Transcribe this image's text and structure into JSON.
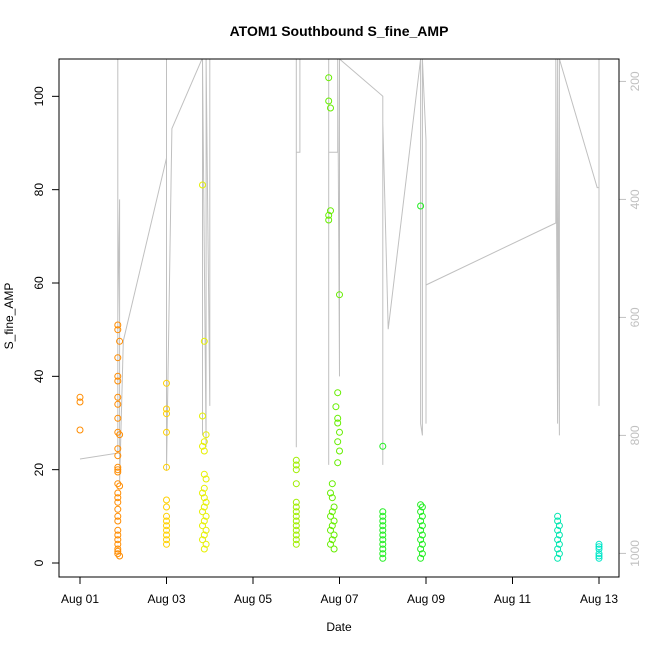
{
  "chart_data": {
    "type": "scatter",
    "title": "ATOM1 Southbound S_fine_AMP",
    "xlabel": "Date",
    "ylabel": "S_fine_AMP",
    "x_ticks": [
      "Aug 01",
      "Aug 03",
      "Aug 05",
      "Aug 07",
      "Aug 09",
      "Aug 11",
      "Aug 13"
    ],
    "y_ticks": [
      0,
      20,
      40,
      60,
      80,
      100
    ],
    "ylim": [
      -3,
      108
    ],
    "secondary_axis": {
      "side": "right",
      "ticks": [
        200,
        400,
        600,
        800,
        1000
      ],
      "ylim_reversed": [
        1040,
        162
      ],
      "color": "#c0c0c0"
    },
    "grid": false,
    "legend": "none",
    "series": [
      {
        "color": "#ff8c00",
        "points": [
          [
            "2023-08-01T00:00",
            35.5
          ],
          [
            "2023-08-01T00:00",
            34.5
          ],
          [
            "2023-08-01T00:00",
            28.5
          ],
          [
            "2023-08-01T21:00",
            51
          ],
          [
            "2023-08-01T21:00",
            50
          ],
          [
            "2023-08-01T22:00",
            47.5
          ],
          [
            "2023-08-01T21:00",
            44
          ],
          [
            "2023-08-01T21:00",
            40
          ],
          [
            "2023-08-01T21:00",
            39
          ],
          [
            "2023-08-01T21:00",
            35.5
          ],
          [
            "2023-08-01T21:00",
            34
          ],
          [
            "2023-08-01T21:00",
            31
          ],
          [
            "2023-08-01T21:00",
            28
          ],
          [
            "2023-08-01T22:00",
            27.5
          ],
          [
            "2023-08-01T21:00",
            24.5
          ],
          [
            "2023-08-01T21:00",
            23
          ],
          [
            "2023-08-01T21:00",
            20.5
          ],
          [
            "2023-08-01T21:00",
            20
          ],
          [
            "2023-08-01T21:00",
            19.5
          ],
          [
            "2023-08-01T21:00",
            17
          ],
          [
            "2023-08-01T22:00",
            16.5
          ],
          [
            "2023-08-01T21:00",
            15
          ],
          [
            "2023-08-01T21:00",
            14
          ],
          [
            "2023-08-01T21:00",
            13
          ],
          [
            "2023-08-01T21:00",
            11.5
          ],
          [
            "2023-08-01T21:00",
            10
          ],
          [
            "2023-08-01T21:00",
            9
          ],
          [
            "2023-08-01T21:00",
            7
          ],
          [
            "2023-08-01T21:00",
            6
          ],
          [
            "2023-08-01T21:00",
            5
          ],
          [
            "2023-08-01T21:00",
            4
          ],
          [
            "2023-08-01T21:00",
            3
          ],
          [
            "2023-08-01T21:00",
            2.5
          ],
          [
            "2023-08-01T21:00",
            2
          ],
          [
            "2023-08-01T22:00",
            1.5
          ]
        ]
      },
      {
        "color": "#ffd000",
        "points": [
          [
            "2023-08-03T00:00",
            38.5
          ],
          [
            "2023-08-03T00:00",
            33
          ],
          [
            "2023-08-03T00:00",
            32
          ],
          [
            "2023-08-03T00:00",
            28
          ],
          [
            "2023-08-03T00:00",
            20.5
          ],
          [
            "2023-08-03T00:00",
            13.5
          ],
          [
            "2023-08-03T00:00",
            12
          ],
          [
            "2023-08-03T00:00",
            10
          ],
          [
            "2023-08-03T00:00",
            9
          ],
          [
            "2023-08-03T00:00",
            8
          ],
          [
            "2023-08-03T00:00",
            7
          ],
          [
            "2023-08-03T00:00",
            6
          ],
          [
            "2023-08-03T00:00",
            5
          ],
          [
            "2023-08-03T00:00",
            4
          ]
        ]
      },
      {
        "color": "#e6f000",
        "points": [
          [
            "2023-08-03T20:00",
            81
          ],
          [
            "2023-08-03T21:00",
            47.5
          ],
          [
            "2023-08-03T20:00",
            31.5
          ],
          [
            "2023-08-03T22:00",
            27.5
          ],
          [
            "2023-08-03T21:00",
            26
          ],
          [
            "2023-08-03T20:00",
            25
          ],
          [
            "2023-08-03T21:00",
            24
          ],
          [
            "2023-08-03T21:00",
            19
          ],
          [
            "2023-08-03T22:00",
            18
          ],
          [
            "2023-08-03T21:00",
            16
          ],
          [
            "2023-08-03T20:00",
            15
          ],
          [
            "2023-08-03T21:00",
            14
          ],
          [
            "2023-08-03T22:00",
            13
          ],
          [
            "2023-08-03T21:00",
            12
          ],
          [
            "2023-08-03T20:00",
            11
          ],
          [
            "2023-08-03T22:00",
            10
          ],
          [
            "2023-08-03T21:00",
            9
          ],
          [
            "2023-08-03T20:00",
            8
          ],
          [
            "2023-08-03T22:00",
            7
          ],
          [
            "2023-08-03T21:00",
            6
          ],
          [
            "2023-08-03T20:00",
            5
          ],
          [
            "2023-08-03T22:00",
            4
          ],
          [
            "2023-08-03T21:00",
            3
          ]
        ]
      },
      {
        "color": "#a0ee00",
        "points": [
          [
            "2023-08-06T00:00",
            22
          ],
          [
            "2023-08-06T00:00",
            21
          ],
          [
            "2023-08-06T00:00",
            20
          ],
          [
            "2023-08-06T00:00",
            17
          ],
          [
            "2023-08-06T00:00",
            13
          ],
          [
            "2023-08-06T00:00",
            12
          ],
          [
            "2023-08-06T00:00",
            11
          ],
          [
            "2023-08-06T00:00",
            10
          ],
          [
            "2023-08-06T00:00",
            9
          ],
          [
            "2023-08-06T00:00",
            8
          ],
          [
            "2023-08-06T00:00",
            7
          ],
          [
            "2023-08-06T00:00",
            6
          ],
          [
            "2023-08-06T00:00",
            5
          ],
          [
            "2023-08-06T00:00",
            4
          ]
        ]
      },
      {
        "color": "#66ee00",
        "points": [
          [
            "2023-08-06T18:00",
            104
          ],
          [
            "2023-08-06T18:00",
            99
          ],
          [
            "2023-08-06T19:00",
            97.5
          ],
          [
            "2023-08-06T19:00",
            75.5
          ],
          [
            "2023-08-06T18:00",
            74.5
          ],
          [
            "2023-08-06T18:00",
            73.5
          ],
          [
            "2023-08-07T00:00",
            57.5
          ],
          [
            "2023-08-06T23:00",
            36.5
          ],
          [
            "2023-08-06T22:00",
            33.5
          ],
          [
            "2023-08-06T23:00",
            31
          ],
          [
            "2023-08-06T23:00",
            30
          ],
          [
            "2023-08-07T00:00",
            28
          ],
          [
            "2023-08-06T23:00",
            26
          ],
          [
            "2023-08-07T00:00",
            24
          ],
          [
            "2023-08-06T23:00",
            21.5
          ],
          [
            "2023-08-06T20:00",
            17
          ],
          [
            "2023-08-06T19:00",
            15
          ],
          [
            "2023-08-06T20:00",
            14
          ],
          [
            "2023-08-06T21:00",
            12
          ],
          [
            "2023-08-06T20:00",
            11
          ],
          [
            "2023-08-06T19:00",
            10
          ],
          [
            "2023-08-06T21:00",
            9
          ],
          [
            "2023-08-06T20:00",
            8
          ],
          [
            "2023-08-06T19:00",
            7
          ],
          [
            "2023-08-06T21:00",
            6
          ],
          [
            "2023-08-06T20:00",
            5
          ],
          [
            "2023-08-06T19:00",
            4
          ],
          [
            "2023-08-06T21:00",
            3
          ]
        ]
      },
      {
        "color": "#22ee22",
        "points": [
          [
            "2023-08-08T00:00",
            25
          ],
          [
            "2023-08-08T00:00",
            11
          ],
          [
            "2023-08-08T00:00",
            10
          ],
          [
            "2023-08-08T00:00",
            9
          ],
          [
            "2023-08-08T00:00",
            8
          ],
          [
            "2023-08-08T00:00",
            7
          ],
          [
            "2023-08-08T00:00",
            6
          ],
          [
            "2023-08-08T00:00",
            5
          ],
          [
            "2023-08-08T00:00",
            4
          ],
          [
            "2023-08-08T00:00",
            3
          ],
          [
            "2023-08-08T00:00",
            2
          ],
          [
            "2023-08-08T00:00",
            1
          ],
          [
            "2023-08-08T21:00",
            76.5
          ],
          [
            "2023-08-08T21:00",
            12.5
          ],
          [
            "2023-08-08T22:00",
            12
          ],
          [
            "2023-08-08T21:00",
            11
          ],
          [
            "2023-08-08T22:00",
            10
          ],
          [
            "2023-08-08T21:00",
            9
          ],
          [
            "2023-08-08T22:00",
            8
          ],
          [
            "2023-08-08T21:00",
            7
          ],
          [
            "2023-08-08T22:00",
            6
          ],
          [
            "2023-08-08T21:00",
            5
          ],
          [
            "2023-08-08T22:00",
            4
          ],
          [
            "2023-08-08T21:00",
            3
          ],
          [
            "2023-08-08T22:00",
            2
          ],
          [
            "2023-08-08T21:00",
            1
          ]
        ]
      },
      {
        "color": "#00e6b0",
        "points": [
          [
            "2023-08-12T01:00",
            10
          ],
          [
            "2023-08-12T01:00",
            9
          ],
          [
            "2023-08-12T02:00",
            8
          ],
          [
            "2023-08-12T01:00",
            7
          ],
          [
            "2023-08-12T02:00",
            6
          ],
          [
            "2023-08-12T01:00",
            5
          ],
          [
            "2023-08-12T02:00",
            4
          ],
          [
            "2023-08-12T01:00",
            3
          ],
          [
            "2023-08-12T02:00",
            2
          ],
          [
            "2023-08-12T01:00",
            1
          ]
        ]
      },
      {
        "color": "#00e6c8",
        "points": [
          [
            "2023-08-13T00:00",
            4
          ],
          [
            "2023-08-13T00:00",
            3.5
          ],
          [
            "2023-08-13T00:00",
            3
          ],
          [
            "2023-08-13T00:00",
            2
          ],
          [
            "2023-08-13T00:00",
            1.5
          ],
          [
            "2023-08-13T00:00",
            1
          ]
        ]
      }
    ],
    "secondary_line": {
      "color": "#c0c0c0",
      "points": [
        [
          "2023-08-01T00:00",
          840
        ],
        [
          "2023-08-01T21:00",
          830
        ],
        [
          "2023-08-01T21:00",
          162
        ],
        [
          "2023-08-01T21:00",
          600
        ],
        [
          "2023-08-01T22:00",
          400
        ],
        [
          "2023-08-01T22:00",
          880
        ],
        [
          "2023-08-02T00:00",
          640
        ],
        [
          "2023-08-03T00:00",
          330
        ],
        [
          "2023-08-03T00:00",
          162
        ],
        [
          "2023-08-03T00:00",
          860
        ],
        [
          "2023-08-03T03:00",
          280
        ],
        [
          "2023-08-03T20:00",
          160
        ],
        [
          "2023-08-03T20:00",
          800
        ],
        [
          "2023-08-03T20:00",
          162
        ],
        [
          "2023-08-03T22:00",
          820
        ],
        [
          "2023-08-03T22:00",
          162
        ],
        [
          "2023-08-04T00:00",
          750
        ],
        [
          "2023-08-04T00:00",
          162
        ],
        [
          "2023-08-05T08:00",
          162
        ],
        [
          "2023-08-06T00:00",
          162
        ],
        [
          "2023-08-06T00:00",
          820
        ],
        [
          "2023-08-06T00:00",
          320
        ],
        [
          "2023-08-06T02:00",
          320
        ],
        [
          "2023-08-06T02:00",
          162
        ],
        [
          "2023-08-06T18:00",
          162
        ],
        [
          "2023-08-06T18:00",
          850
        ],
        [
          "2023-08-06T18:00",
          320
        ],
        [
          "2023-08-06T23:00",
          320
        ],
        [
          "2023-08-06T23:00",
          162
        ],
        [
          "2023-08-07T00:00",
          700
        ],
        [
          "2023-08-07T00:00",
          162
        ],
        [
          "2023-08-08T00:00",
          225
        ],
        [
          "2023-08-08T00:00",
          850
        ],
        [
          "2023-08-08T00:00",
          270
        ],
        [
          "2023-08-08T03:00",
          620
        ],
        [
          "2023-08-08T21:00",
          162
        ],
        [
          "2023-08-08T21:00",
          780
        ],
        [
          "2023-08-08T22:00",
          800
        ],
        [
          "2023-08-08T22:00",
          162
        ],
        [
          "2023-08-09T00:00",
          300
        ],
        [
          "2023-08-09T00:00",
          780
        ],
        [
          "2023-08-09T00:00",
          545
        ],
        [
          "2023-08-12T00:00",
          440
        ],
        [
          "2023-08-12T00:00",
          162
        ],
        [
          "2023-08-12T01:00",
          780
        ],
        [
          "2023-08-12T01:00",
          162
        ],
        [
          "2023-08-12T02:00",
          800
        ],
        [
          "2023-08-12T02:00",
          162
        ],
        [
          "2023-08-12T23:00",
          380
        ],
        [
          "2023-08-13T00:00",
          380
        ],
        [
          "2023-08-13T00:00",
          162
        ],
        [
          "2023-08-13T00:00",
          750
        ]
      ]
    }
  }
}
